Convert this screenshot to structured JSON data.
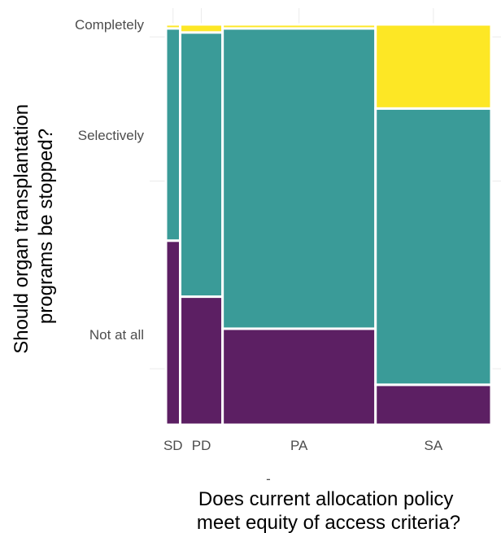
{
  "chart_data": {
    "type": "mosaic",
    "title": "",
    "xlabel_lines": [
      "Does current allocation policy",
      "meet equity of access criteria?"
    ],
    "ylabel_lines": [
      "Should organ transplantation",
      "programs be stopped?"
    ],
    "x_extra_label": "-",
    "categories": [
      "SD",
      "PD",
      "PA",
      "SA"
    ],
    "category_shares": [
      0.036,
      0.107,
      0.386,
      0.292
    ],
    "y_levels": [
      "Not at all",
      "Selectively",
      "Completely"
    ],
    "y_tick_labels": [
      "Not at all",
      "Selectively",
      "Completely"
    ],
    "series": [
      {
        "level": "Not at all",
        "color": "#5c1f63",
        "values": [
          0.46,
          0.32,
          0.24,
          0.1
        ]
      },
      {
        "level": "Selectively",
        "color": "#3a9b98",
        "values": [
          0.53,
          0.66,
          0.75,
          0.69
        ]
      },
      {
        "level": "Completely",
        "color": "#fde725",
        "values": [
          0.01,
          0.02,
          0.01,
          0.21
        ]
      }
    ],
    "colors": {
      "Not at all": "#5c1f63",
      "Selectively": "#3a9b98",
      "Completely": "#fde725"
    },
    "grid": true,
    "legend": "none"
  }
}
